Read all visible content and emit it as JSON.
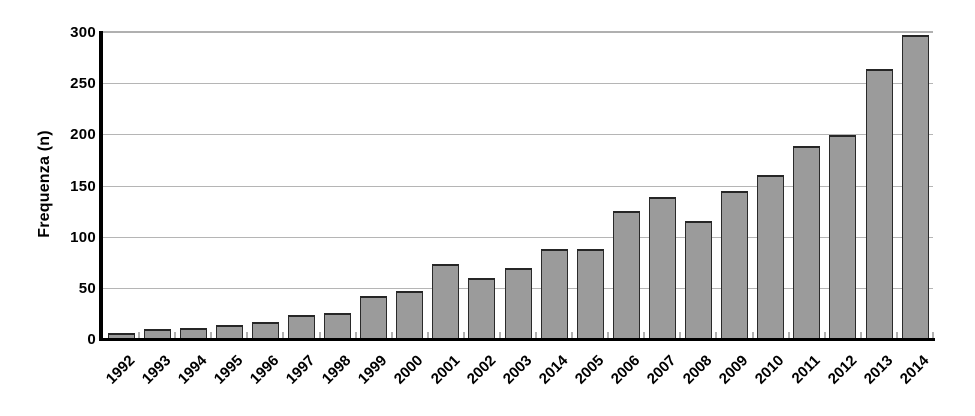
{
  "chart_data": {
    "type": "bar",
    "title": "",
    "xlabel": "",
    "ylabel": "Frequenza (n)",
    "categories": [
      "1992",
      "1993",
      "1994",
      "1995",
      "1996",
      "1997",
      "1998",
      "1999",
      "2000",
      "2001",
      "2002",
      "2003",
      "2014",
      "2005",
      "2006",
      "2007",
      "2008",
      "2009",
      "2010",
      "2011",
      "2012",
      "2013",
      "2014"
    ],
    "values": [
      7,
      11,
      12,
      15,
      18,
      24,
      26,
      43,
      48,
      74,
      61,
      70,
      89,
      89,
      126,
      140,
      116,
      146,
      161,
      190,
      200,
      265,
      298
    ],
    "ylim": [
      0,
      300
    ],
    "yticks": [
      0,
      50,
      100,
      150,
      200,
      250,
      300
    ],
    "grid": "horizontal gridlines on, vertical off",
    "legend_position": "none",
    "note_label_anomaly": "x label between 2003 and 2005 reads 2014 in source image",
    "colors": {
      "bar_fill": "#9b9b9b",
      "bar_border": "#2a2a2a",
      "gridline": "#b5b5b5",
      "axis": "#000000",
      "minor_tick": "#b0b0b0",
      "background": "#ffffff",
      "text": "#000000"
    }
  }
}
